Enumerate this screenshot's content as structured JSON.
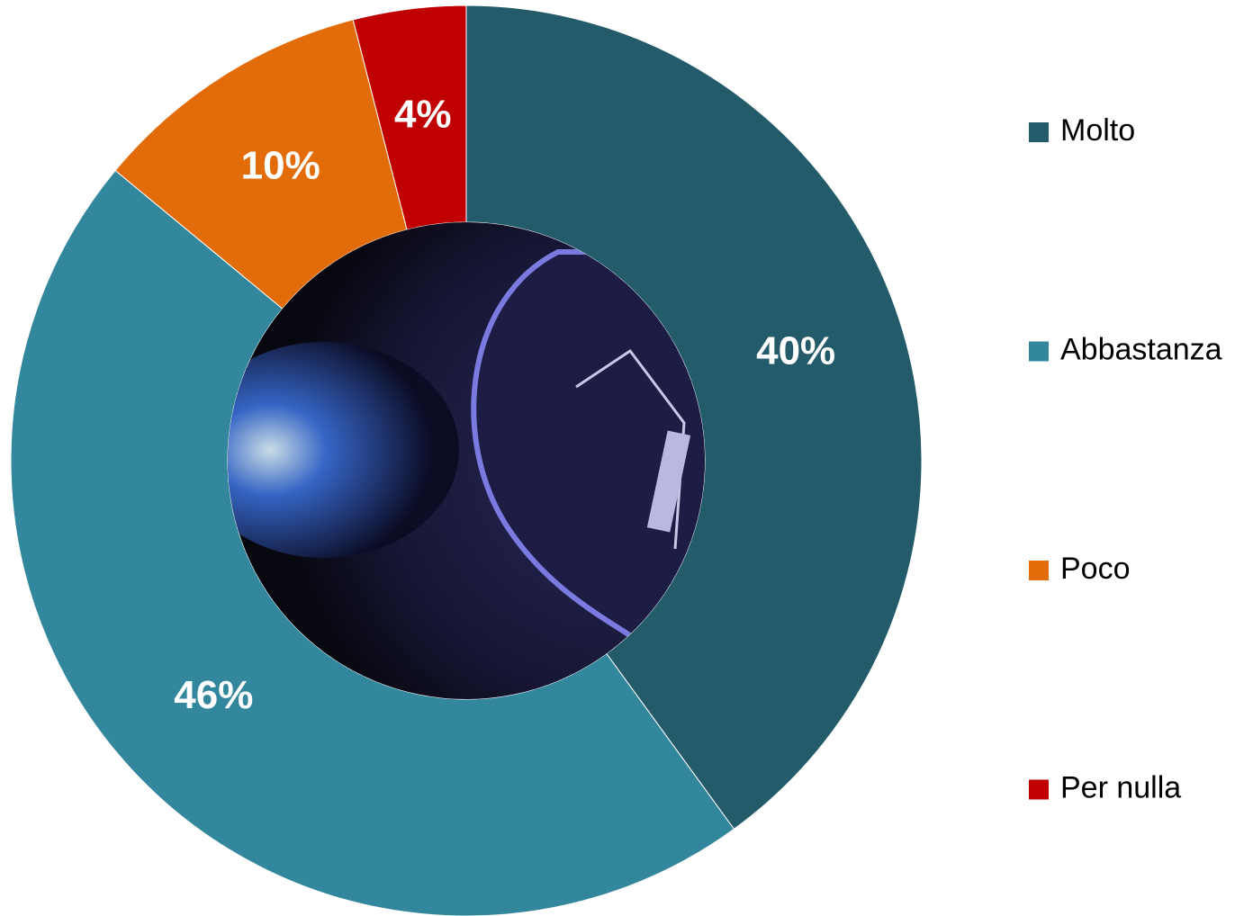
{
  "chart_data": {
    "type": "donut",
    "categories": [
      "Molto",
      "Abbastanza",
      "Poco",
      "Per nulla"
    ],
    "values": [
      40,
      46,
      10,
      4
    ],
    "value_labels": [
      "40%",
      "46%",
      "10%",
      "4%"
    ],
    "colors": [
      "#235b6a",
      "#33879d",
      "#e36c0a",
      "#c00000"
    ],
    "legend": "right"
  }
}
